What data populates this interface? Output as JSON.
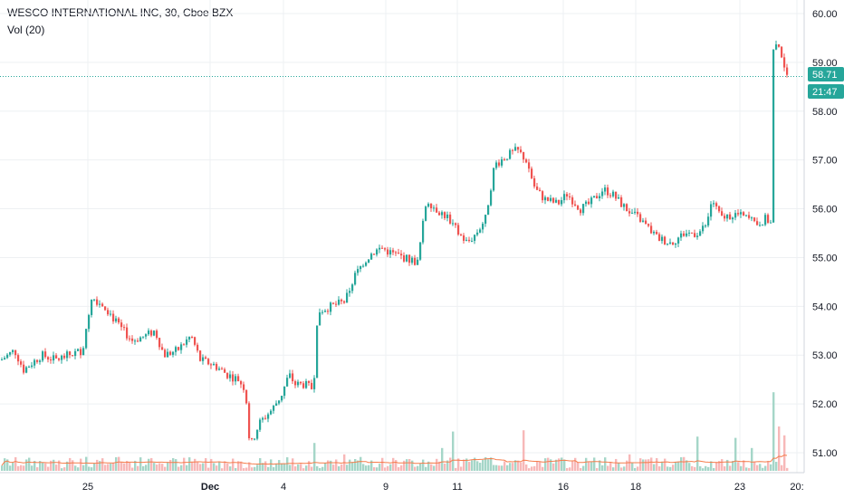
{
  "header": {
    "title": "WESCO INTERNATIONAL INC, 30, Cboe BZX",
    "indicator": "Vol (20)"
  },
  "colors": {
    "up": "#26a69a",
    "down": "#ef5350",
    "up_vol": "#a5d6c8",
    "down_vol": "#f7b8b8",
    "ma": "#f57c4a",
    "grid": "#eef0f3",
    "price_line": "#26a69a"
  },
  "chart_data": {
    "type": "candlestick",
    "y_ticks": [
      "60.00",
      "59.00",
      "58.00",
      "57.00",
      "56.00",
      "55.00",
      "54.00",
      "53.00",
      "52.00",
      "51.00"
    ],
    "ylim": [
      50.6,
      60.2
    ],
    "x_labels": [
      "25",
      "Dec",
      "4",
      "9",
      "11",
      "16",
      "18",
      "23",
      "20:"
    ],
    "last_price": 58.71,
    "last_price_label": "58.71",
    "countdown_label": "21:47",
    "path": [
      [
        0,
        52.9
      ],
      [
        15,
        53.1
      ],
      [
        25,
        52.7
      ],
      [
        45,
        53.0
      ],
      [
        60,
        52.9
      ],
      [
        75,
        53.0
      ],
      [
        90,
        53.1
      ],
      [
        100,
        54.2
      ],
      [
        115,
        54.0
      ],
      [
        130,
        53.6
      ],
      [
        145,
        53.3
      ],
      [
        160,
        53.4
      ],
      [
        170,
        53.5
      ],
      [
        180,
        53.0
      ],
      [
        195,
        53.1
      ],
      [
        210,
        53.4
      ],
      [
        220,
        52.9
      ],
      [
        235,
        52.8
      ],
      [
        250,
        52.6
      ],
      [
        262,
        52.5
      ],
      [
        270,
        52.3
      ],
      [
        275,
        51.1
      ],
      [
        285,
        51.6
      ],
      [
        300,
        51.9
      ],
      [
        310,
        52.2
      ],
      [
        318,
        52.6
      ],
      [
        325,
        52.4
      ],
      [
        335,
        52.4
      ],
      [
        345,
        52.3
      ],
      [
        350,
        53.9
      ],
      [
        365,
        54.0
      ],
      [
        380,
        54.1
      ],
      [
        390,
        54.6
      ],
      [
        400,
        54.9
      ],
      [
        410,
        55.1
      ],
      [
        420,
        55.2
      ],
      [
        430,
        55.1
      ],
      [
        445,
        55.0
      ],
      [
        460,
        54.9
      ],
      [
        470,
        56.2
      ],
      [
        480,
        56.0
      ],
      [
        495,
        55.8
      ],
      [
        505,
        55.5
      ],
      [
        515,
        55.3
      ],
      [
        525,
        55.5
      ],
      [
        535,
        55.8
      ],
      [
        545,
        56.9
      ],
      [
        560,
        57.1
      ],
      [
        570,
        57.2
      ],
      [
        580,
        57.0
      ],
      [
        590,
        56.4
      ],
      [
        600,
        56.2
      ],
      [
        615,
        56.1
      ],
      [
        625,
        56.3
      ],
      [
        640,
        56.0
      ],
      [
        650,
        56.1
      ],
      [
        665,
        56.4
      ],
      [
        675,
        56.3
      ],
      [
        690,
        56.0
      ],
      [
        705,
        55.8
      ],
      [
        715,
        55.6
      ],
      [
        725,
        55.4
      ],
      [
        740,
        55.3
      ],
      [
        755,
        55.5
      ],
      [
        770,
        55.5
      ],
      [
        780,
        55.7
      ],
      [
        785,
        56.2
      ],
      [
        795,
        55.8
      ],
      [
        810,
        55.9
      ],
      [
        825,
        55.8
      ],
      [
        835,
        55.7
      ],
      [
        845,
        55.8
      ],
      [
        850,
        55.7
      ],
      [
        852,
        59.2
      ],
      [
        860,
        59.4
      ],
      [
        866,
        58.7
      ]
    ],
    "volume_spikes": [
      {
        "x": 853,
        "v": 0.62
      },
      {
        "x": 866,
        "v": 0.28
      },
      {
        "x": 812,
        "v": 0.26
      },
      {
        "x": 770,
        "v": 0.27
      },
      {
        "x": 693,
        "v": 0.13
      },
      {
        "x": 578,
        "v": 0.32
      },
      {
        "x": 500,
        "v": 0.31
      },
      {
        "x": 488,
        "v": 0.18
      },
      {
        "x": 345,
        "v": 0.22
      },
      {
        "x": 130,
        "v": 0.11
      },
      {
        "x": 95,
        "v": 0.11
      },
      {
        "x": 56,
        "v": 0.08
      },
      {
        "x": 378,
        "v": 0.13
      },
      {
        "x": 830,
        "v": 0.18
      },
      {
        "x": 860,
        "v": 0.35
      }
    ]
  }
}
